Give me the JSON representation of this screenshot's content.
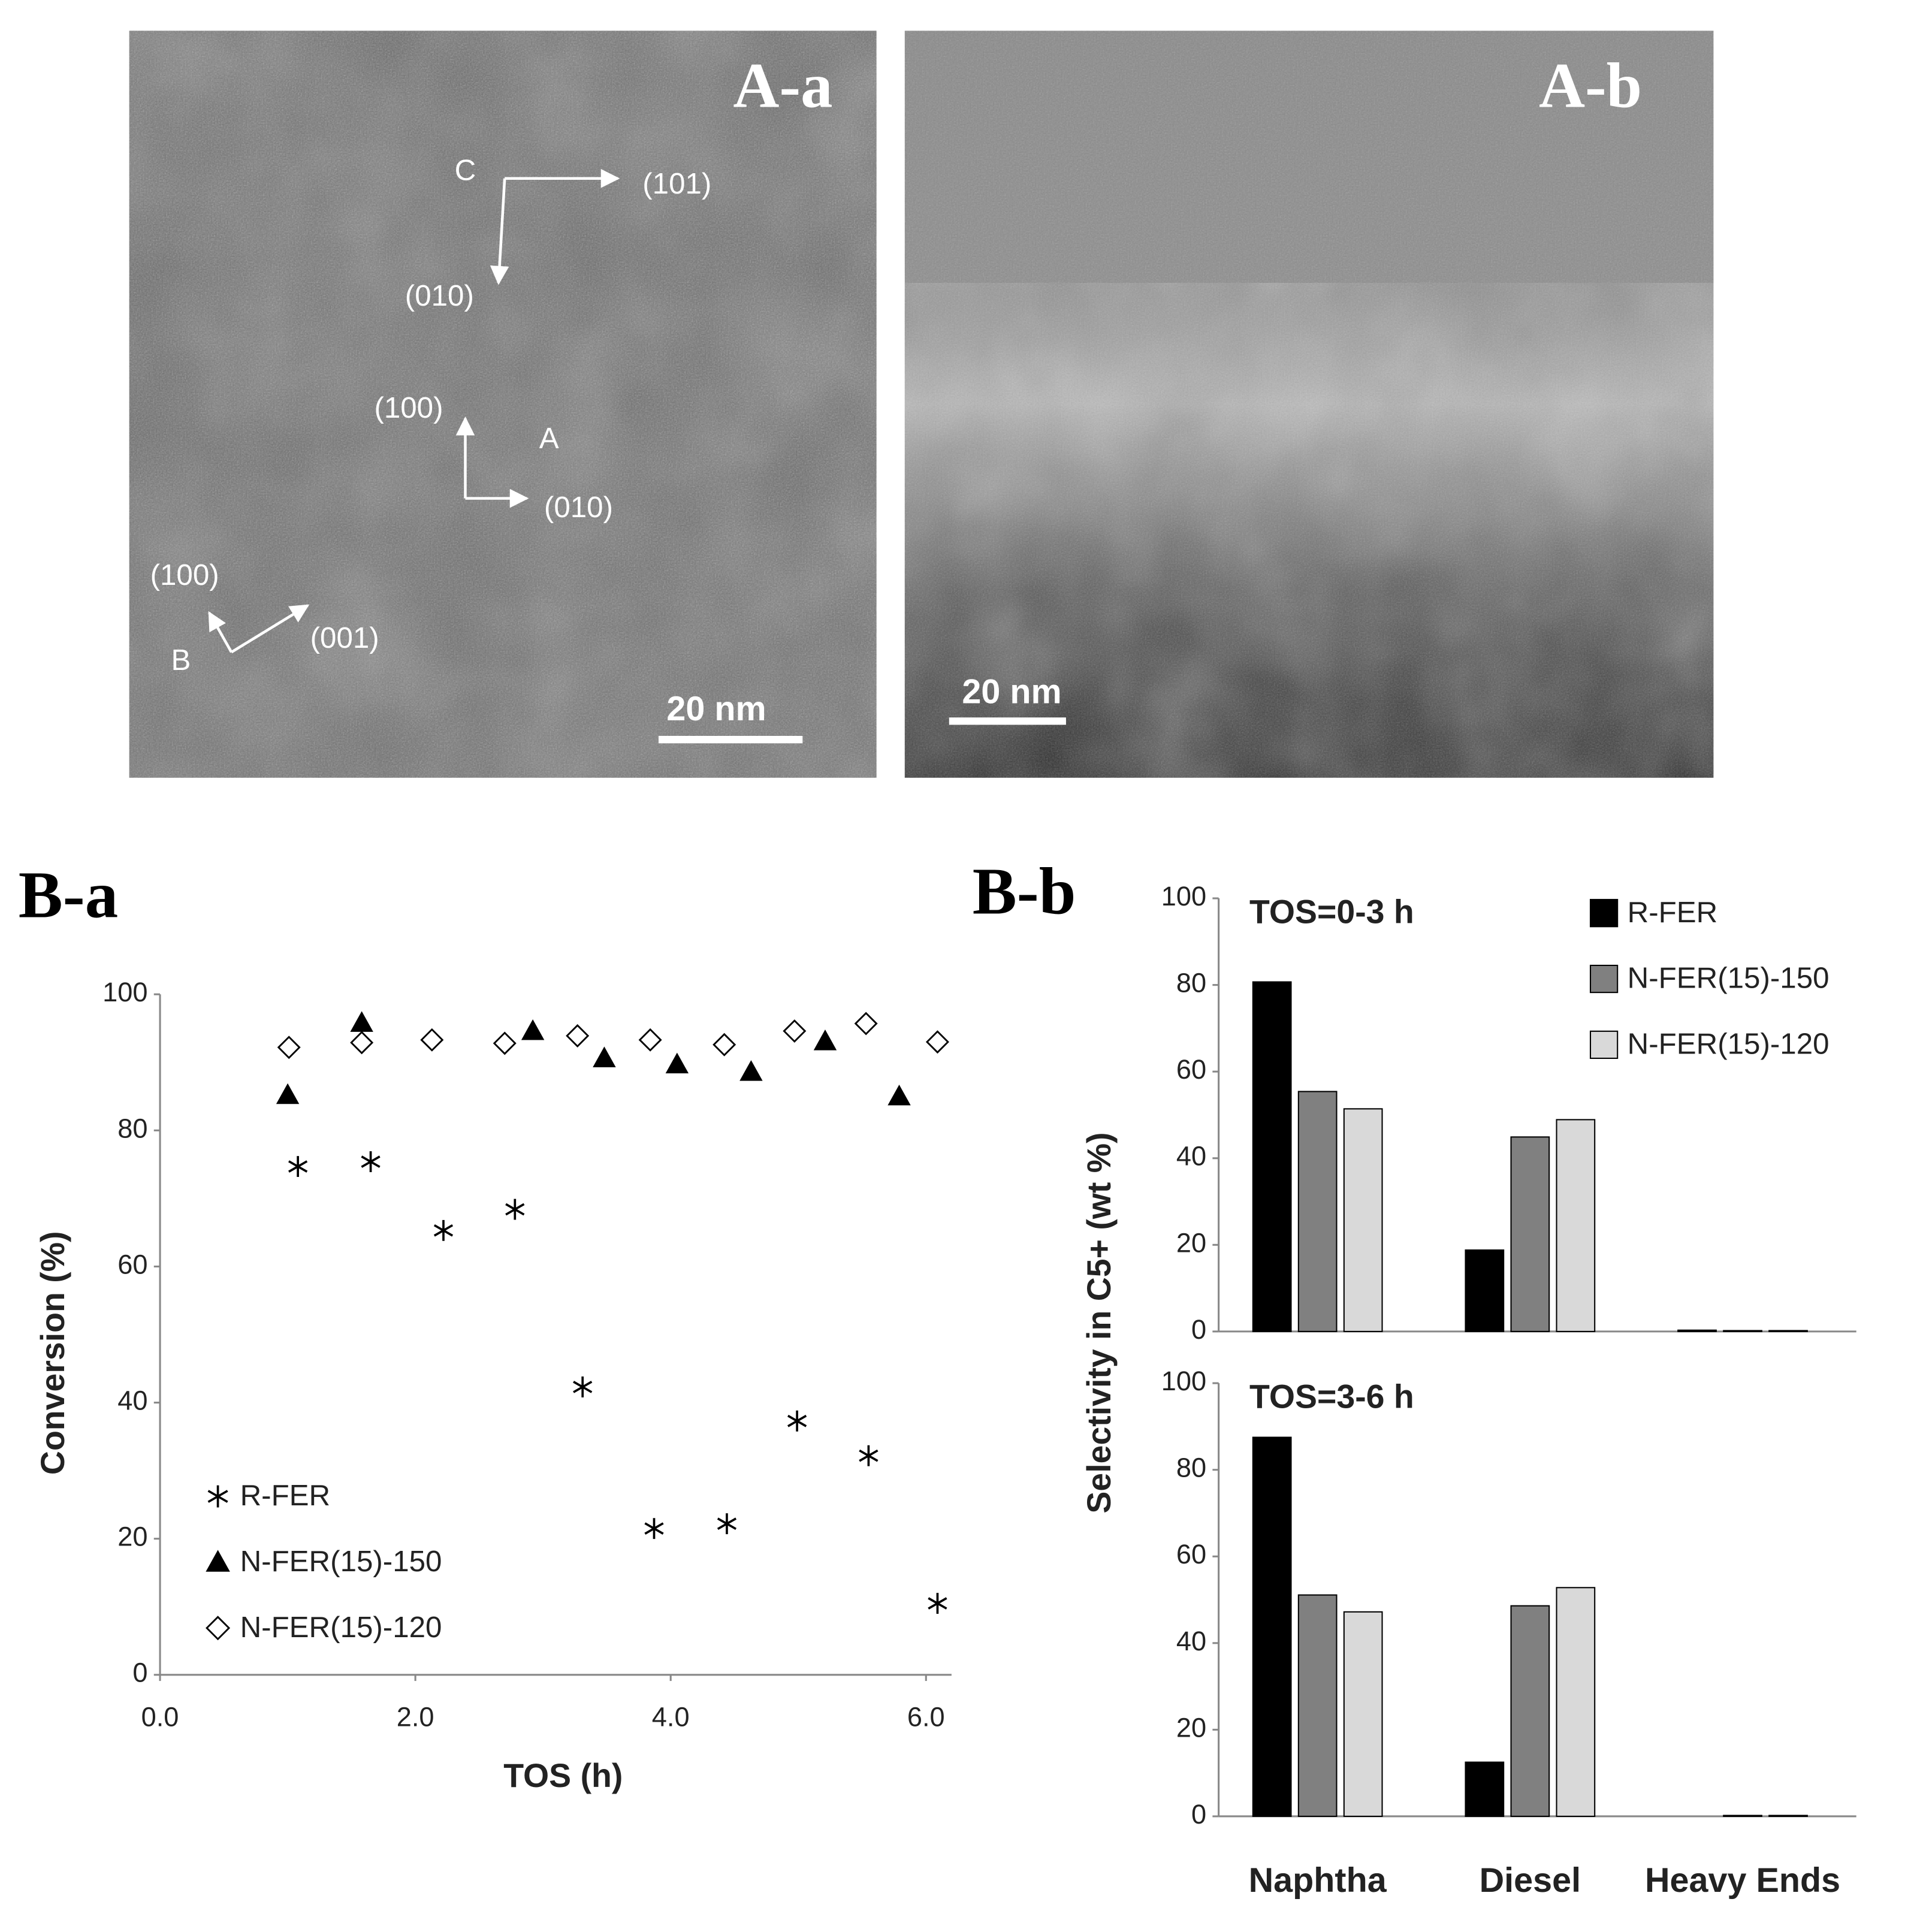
{
  "images": [
    {
      "label": "A-a",
      "annotations": [
        "C",
        "(101)",
        "(010)",
        "(100)",
        "A",
        "(010)",
        "(100)",
        "B",
        "(001)"
      ],
      "scale_bar": "20 nm"
    },
    {
      "label": "A-b",
      "scale_bar": "20 nm"
    }
  ],
  "chart_data": [
    {
      "type": "scatter",
      "panel": "B-a",
      "xlabel": "TOS (h)",
      "ylabel": "Conversion (%)",
      "xlim": [
        0,
        6.2
      ],
      "ylim": [
        0,
        100
      ],
      "xticks": [
        {
          "value": 0,
          "label": "0.0"
        },
        {
          "value": 2,
          "label": "2.0"
        },
        {
          "value": 4,
          "label": "4.0"
        },
        {
          "value": 6,
          "label": "6.0"
        }
      ],
      "yticks": [
        0,
        20,
        40,
        60,
        80,
        100
      ],
      "legend": "lower left",
      "series": [
        {
          "name": "R-FER",
          "color": "#000000",
          "marker": "asterisk",
          "x": [
            1.08,
            1.65,
            2.22,
            2.78,
            3.31,
            3.87,
            4.44,
            4.99,
            5.55,
            6.09
          ],
          "values": [
            74.7,
            75.4,
            65.3,
            68.4,
            42.3,
            21.5,
            22.2,
            37.3,
            32.2,
            10.5
          ]
        },
        {
          "name": "N-FER(15)-150",
          "color": "#000000",
          "marker": "triangle",
          "x": [
            1.0,
            1.58,
            2.92,
            3.48,
            4.05,
            4.63,
            5.21,
            5.79
          ],
          "values": [
            85.2,
            95.8,
            94.6,
            90.6,
            89.7,
            88.6,
            93.1,
            85.0
          ]
        },
        {
          "name": "N-FER(15)-120",
          "color": "#000000",
          "marker": "diamond",
          "x": [
            1.01,
            1.58,
            2.13,
            2.7,
            3.27,
            3.84,
            4.42,
            4.97,
            5.53,
            6.09
          ],
          "values": [
            92.2,
            92.9,
            93.3,
            92.8,
            93.9,
            93.3,
            92.6,
            94.6,
            95.7,
            93.0
          ]
        }
      ]
    },
    {
      "type": "bar",
      "panel": "B-b",
      "title": "TOS=0-3 h",
      "ylabel": "Selectivity in C5+ (wt %)",
      "ylim": [
        0,
        100
      ],
      "yticks": [
        0,
        20,
        40,
        60,
        80,
        100
      ],
      "legend": "upper right",
      "categories": [
        null,
        null,
        null
      ],
      "series": [
        {
          "name": "R-FER",
          "color": "#000000",
          "values": [
            80.7,
            18.8,
            0.3
          ]
        },
        {
          "name": "N-FER(15)-150",
          "color": "#808080",
          "values": [
            55.4,
            44.9,
            0.2
          ]
        },
        {
          "name": "N-FER(15)-120",
          "color": "#d9d9d9",
          "values": [
            51.4,
            48.9,
            0.2
          ]
        }
      ]
    },
    {
      "type": "bar",
      "title": "TOS=3-6 h",
      "ylim": [
        0,
        100
      ],
      "yticks": [
        0,
        20,
        40,
        60,
        80,
        100
      ],
      "categories": [
        "Naphtha",
        "Diesel",
        "Heavy Ends"
      ],
      "series": [
        {
          "color": "#000000",
          "values": [
            87.5,
            12.5,
            0
          ]
        },
        {
          "color": "#808080",
          "values": [
            51.1,
            48.6,
            0.2
          ]
        },
        {
          "color": "#d9d9d9",
          "values": [
            47.2,
            52.8,
            0.2
          ]
        }
      ]
    }
  ]
}
